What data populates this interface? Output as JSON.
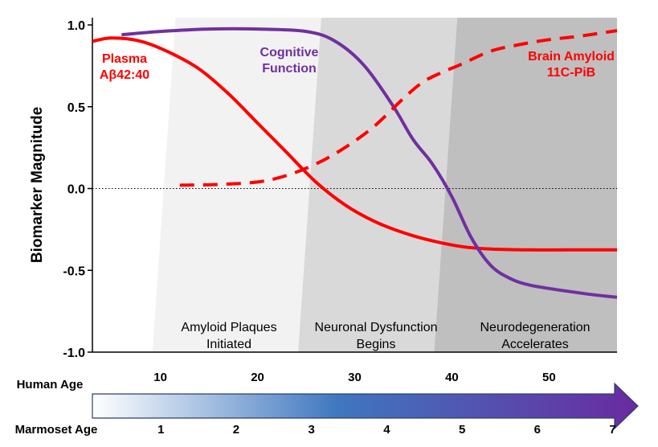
{
  "chart_data": {
    "type": "line",
    "ylabel": "Biomarker Magnitude",
    "ylim": [
      -1.0,
      1.0
    ],
    "y_ticks": [
      "1.0",
      "0.5",
      "0.0",
      "-0.5",
      "-1.0"
    ],
    "xlim": [
      3,
      57
    ],
    "human_age_label": "Human Age",
    "human_age_ticks": [
      10,
      20,
      30,
      40,
      50
    ],
    "marmoset_age_label": "Marmoset Age",
    "marmoset_age_ticks": [
      1,
      2,
      3,
      4,
      5,
      6,
      7
    ],
    "arrow_colors": {
      "start": "#ffffff",
      "mid": "#3f77bf",
      "end": "#6a2aa0",
      "edge": "#2a3f6a"
    },
    "reference_line": {
      "y": 0.0,
      "style": "dotted"
    },
    "stages": [
      {
        "lines": [
          "Amyloid Plaques",
          "Initiated"
        ],
        "color": "#f2f2f2",
        "x_start": 10.5,
        "x_end": 25.5
      },
      {
        "lines": [
          "Neuronal Dysfunction",
          "Begins"
        ],
        "color": "#d9d9d9",
        "x_start": 25.5,
        "x_end": 39.5
      },
      {
        "lines": [
          "Neurodegeneration",
          "Accelerates"
        ],
        "color": "#bfbfbf",
        "x_start": 39.5,
        "x_end": 57
      }
    ],
    "series": [
      {
        "name": "Plasma Aβ42:40",
        "label_lines": [
          "Plasma",
          "Aβ42:40"
        ],
        "color": "#ff0000",
        "dash": "solid",
        "x": [
          3,
          5,
          8,
          11,
          14,
          17,
          20,
          23,
          26,
          29,
          32,
          35,
          38,
          41,
          44,
          48,
          52,
          57
        ],
        "y": [
          0.9,
          0.92,
          0.9,
          0.83,
          0.73,
          0.58,
          0.4,
          0.22,
          0.04,
          -0.1,
          -0.2,
          -0.27,
          -0.32,
          -0.355,
          -0.37,
          -0.375,
          -0.375,
          -0.375
        ]
      },
      {
        "name": "Cognitive Function",
        "label_lines": [
          "Cognitive",
          "Function"
        ],
        "color": "#7030a0",
        "dash": "solid",
        "x": [
          6,
          10,
          15,
          20,
          25,
          28,
          31,
          34,
          36,
          38,
          40,
          42,
          44,
          46,
          48,
          51,
          54,
          57
        ],
        "y": [
          0.94,
          0.96,
          0.975,
          0.975,
          0.96,
          0.9,
          0.75,
          0.5,
          0.3,
          0.15,
          -0.05,
          -0.3,
          -0.47,
          -0.55,
          -0.59,
          -0.62,
          -0.645,
          -0.665
        ]
      },
      {
        "name": "Brain Amyloid 11C-PiB",
        "label_lines": [
          "Brain Amyloid",
          "11C-PiB"
        ],
        "color": "#ff0000",
        "dash": "dashed",
        "x": [
          12,
          16,
          20,
          23,
          26,
          29,
          32,
          35,
          37,
          39,
          41,
          44,
          47,
          50,
          53,
          57
        ],
        "y": [
          0.02,
          0.025,
          0.04,
          0.08,
          0.15,
          0.25,
          0.38,
          0.55,
          0.65,
          0.71,
          0.76,
          0.84,
          0.88,
          0.91,
          0.93,
          0.965
        ]
      }
    ]
  }
}
